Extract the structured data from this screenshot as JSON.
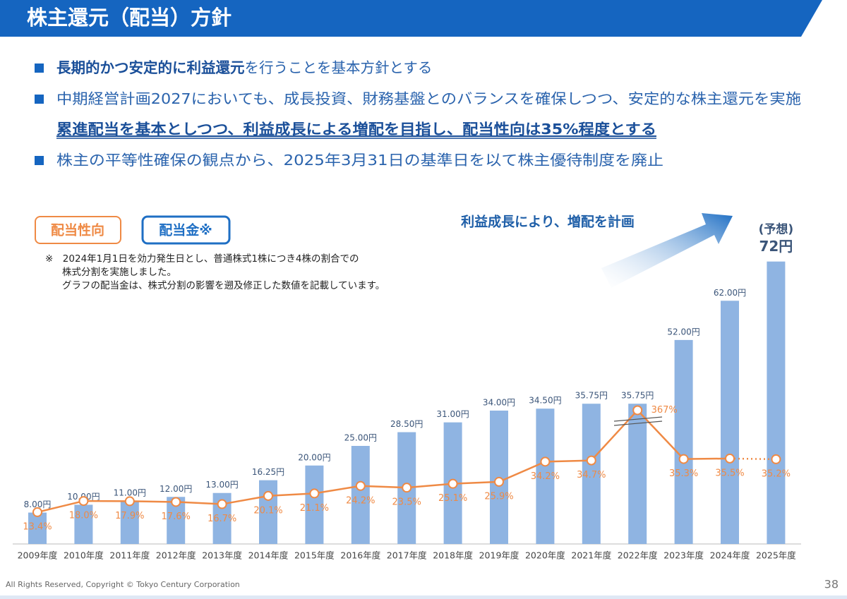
{
  "header": {
    "title": "株主還元（配当）方針"
  },
  "bullets": [
    {
      "bold": "長期的かつ安定的に利益還元",
      "rest": "を行うことを基本方針とする"
    },
    {
      "text": "中期経営計画2027においても、成長投資、財務基盤とのバランスを確保しつつ、安定的な株主還元を実施",
      "emphasis": "累進配当を基本としつつ、利益成長による増配を目指し、配当性向は35%程度とする"
    },
    {
      "text": "株主の平等性確保の観点から、2025年3月31日の基準日を以て株主優待制度を廃止"
    }
  ],
  "note": [
    "※　2024年1月1日を効力発生日とし、普通株式1株につき4株の割合での",
    "株式分割を実施しました。",
    "グラフの配当金は、株式分割の影響を遡及修正した数値を記載しています。"
  ],
  "chart_data": {
    "type": "combo",
    "arrow_label": "利益成長により、増配を計画",
    "forecast_label": "(予想)",
    "categories": [
      "2009年度",
      "2010年度",
      "2011年度",
      "2012年度",
      "2013年度",
      "2014年度",
      "2015年度",
      "2016年度",
      "2017年度",
      "2018年度",
      "2019年度",
      "2020年度",
      "2021年度",
      "2022年度",
      "2023年度",
      "2024年度",
      "2025年度"
    ],
    "series": [
      {
        "name": "配当金※",
        "color": "#8fb4e2",
        "values": [
          8,
          10,
          11,
          12,
          13,
          16.25,
          20,
          25,
          28.5,
          31,
          34,
          34.5,
          35.75,
          35.75,
          52,
          62,
          72
        ],
        "value_labels": [
          "8.00円",
          "10.00円",
          "11.00円",
          "12.00円",
          "13.00円",
          "16.25円",
          "20.00円",
          "25.00円",
          "28.50円",
          "31.00円",
          "34.00円",
          "34.50円",
          "35.75円",
          "35.75円",
          "52.00円",
          "62.00円",
          "72円"
        ]
      },
      {
        "name": "配当性向",
        "color": "#ef8a45",
        "values": [
          13.4,
          18.0,
          17.9,
          17.6,
          16.7,
          20.1,
          21.1,
          24.2,
          23.5,
          25.1,
          25.9,
          34.2,
          34.7,
          367,
          35.3,
          35.5,
          35.2
        ],
        "value_labels": [
          "13.4%",
          "18.0%",
          "17.9%",
          "17.6%",
          "16.7%",
          "20.1%",
          "21.1%",
          "24.2%",
          "23.5%",
          "25.1%",
          "25.9%",
          "34.2%",
          "34.7%",
          "367%",
          "35.3%",
          "35.5%",
          "35.2%"
        ]
      }
    ]
  },
  "footer": {
    "copyright": "All Rights Reserved, Copyright © Tokyo Century Corporation",
    "page": "38"
  }
}
